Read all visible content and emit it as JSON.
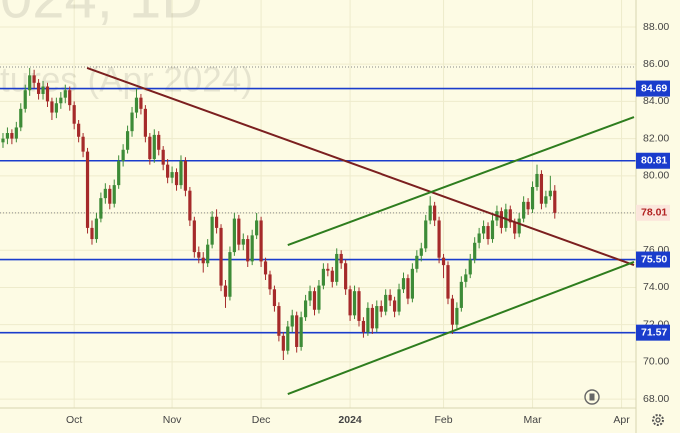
{
  "chart_data": {
    "type": "candlestick",
    "watermark": [
      "024, 1D",
      "tures (Apr 2024)"
    ],
    "open": [
      81.8,
      82.0,
      82.3,
      82.0,
      82.6,
      83.6,
      84.6,
      85.4,
      85.0,
      84.4,
      84.8,
      84.0,
      83.4,
      83.9,
      84.2,
      84.6,
      83.8,
      82.8,
      82.1,
      81.3,
      77.2,
      76.6,
      77.7,
      78.8,
      79.3,
      78.5,
      79.5,
      80.8,
      81.4,
      82.4,
      83.4,
      84.2,
      83.6,
      82.1,
      80.9,
      82.2,
      81.4,
      80.6,
      79.9,
      80.2,
      79.5,
      80.8,
      79.2,
      77.6,
      75.9,
      75.6,
      75.3,
      76.3,
      77.8,
      77.2,
      74.1,
      73.5,
      75.9,
      77.7,
      76.3,
      76.6,
      75.4,
      76.8,
      77.6,
      75.4,
      74.7,
      73.9,
      73.0,
      71.4,
      70.6,
      71.9,
      72.5,
      70.8,
      72.4,
      73.3,
      73.8,
      72.8,
      74.1,
      75.0,
      74.9,
      74.3,
      75.8,
      75.3,
      73.9,
      72.5,
      73.8,
      72.2,
      71.6,
      72.9,
      71.8,
      73.0,
      72.7,
      73.6,
      73.3,
      72.7,
      73.9,
      74.5,
      73.4,
      75.0,
      75.7,
      76.1,
      77.6,
      78.4,
      77.6,
      75.6,
      75.2,
      73.4,
      72.0,
      72.9,
      74.3,
      74.7,
      75.5,
      76.4,
      76.9,
      77.3,
      76.6,
      77.6,
      78.1,
      77.2,
      78.2,
      77.5,
      76.9,
      77.7,
      78.6,
      78.2,
      79.4,
      80.1,
      78.5,
      78.9,
      79.2
    ],
    "high": [
      82.3,
      82.6,
      82.5,
      82.9,
      83.9,
      84.9,
      85.8,
      85.7,
      85.2,
      85.1,
      85.0,
      84.2,
      84.2,
      84.5,
      84.9,
      84.8,
      84.0,
      83.0,
      82.3,
      81.5,
      77.6,
      78.0,
      79.1,
      79.6,
      79.5,
      79.8,
      81.1,
      81.7,
      82.7,
      83.7,
      84.7,
      84.4,
      83.8,
      82.3,
      82.5,
      82.4,
      81.6,
      80.9,
      80.5,
      80.4,
      81.1,
      81.0,
      79.4,
      77.8,
      76.2,
      75.9,
      76.6,
      78.1,
      78.2,
      77.4,
      74.4,
      76.2,
      78.0,
      77.9,
      76.9,
      76.8,
      77.1,
      78.0,
      77.8,
      75.6,
      74.9,
      74.1,
      73.2,
      71.6,
      72.2,
      72.8,
      72.7,
      72.7,
      73.6,
      74.1,
      74.0,
      74.4,
      75.3,
      75.3,
      75.1,
      76.1,
      76.0,
      75.5,
      74.1,
      74.1,
      74.0,
      72.4,
      73.2,
      73.1,
      73.3,
      73.3,
      73.9,
      73.9,
      73.5,
      74.2,
      74.8,
      74.7,
      75.3,
      76.0,
      76.4,
      77.9,
      78.9,
      78.6,
      77.8,
      75.8,
      75.4,
      73.6,
      73.2,
      74.6,
      75.0,
      75.8,
      76.7,
      77.2,
      77.6,
      77.5,
      77.9,
      78.4,
      78.3,
      78.5,
      78.4,
      77.7,
      78.0,
      78.9,
      78.8,
      79.7,
      80.6,
      80.3,
      79.2,
      80.0,
      79.5
    ],
    "low": [
      81.5,
      81.7,
      81.7,
      81.8,
      82.4,
      83.4,
      84.3,
      84.7,
      84.1,
      84.1,
      83.7,
      83.0,
      83.1,
      83.6,
      83.9,
      83.5,
      82.5,
      81.8,
      81.0,
      76.9,
      76.3,
      76.4,
      77.5,
      78.5,
      78.2,
      78.3,
      79.3,
      80.5,
      81.2,
      82.1,
      83.1,
      83.3,
      81.8,
      80.6,
      80.7,
      81.1,
      80.3,
      79.6,
      79.6,
      79.2,
      79.3,
      78.9,
      77.3,
      75.6,
      75.3,
      74.8,
      75.1,
      76.1,
      76.9,
      73.8,
      72.9,
      73.3,
      75.7,
      76.0,
      76.0,
      75.1,
      75.2,
      76.6,
      75.1,
      74.4,
      73.6,
      72.7,
      71.1,
      70.1,
      70.4,
      71.6,
      70.5,
      70.6,
      72.2,
      73.0,
      72.5,
      72.6,
      73.9,
      74.6,
      74.0,
      74.1,
      75.0,
      73.6,
      72.2,
      72.3,
      71.9,
      71.3,
      71.4,
      71.5,
      71.6,
      72.4,
      72.5,
      73.0,
      72.4,
      72.5,
      73.7,
      73.1,
      73.2,
      74.8,
      75.4,
      75.9,
      77.4,
      77.3,
      75.3,
      74.5,
      73.1,
      71.5,
      71.8,
      72.7,
      74.0,
      74.5,
      75.3,
      76.1,
      76.6,
      76.3,
      76.4,
      77.3,
      76.9,
      77.0,
      77.2,
      76.6,
      76.7,
      77.5,
      77.9,
      78.0,
      79.2,
      78.2,
      78.3,
      78.7,
      77.7
    ],
    "close": [
      82.0,
      82.3,
      82.0,
      82.6,
      83.6,
      84.6,
      85.4,
      85.0,
      84.4,
      84.8,
      84.0,
      83.4,
      83.9,
      84.2,
      84.6,
      83.8,
      82.8,
      82.1,
      81.3,
      77.2,
      76.6,
      77.7,
      78.8,
      79.3,
      78.5,
      79.5,
      80.8,
      81.4,
      82.4,
      83.4,
      84.2,
      83.6,
      82.1,
      80.9,
      82.2,
      81.4,
      80.6,
      79.9,
      80.2,
      79.5,
      80.8,
      79.2,
      77.6,
      75.9,
      75.6,
      75.3,
      76.3,
      77.8,
      77.2,
      74.1,
      73.5,
      75.9,
      77.7,
      76.3,
      76.6,
      75.4,
      76.8,
      77.6,
      75.4,
      74.7,
      73.9,
      73.0,
      71.4,
      70.6,
      71.9,
      72.5,
      70.8,
      72.4,
      73.3,
      73.8,
      72.8,
      74.1,
      75.0,
      74.9,
      74.3,
      75.8,
      75.3,
      73.9,
      72.5,
      73.8,
      72.2,
      71.6,
      72.9,
      71.8,
      73.0,
      72.7,
      73.6,
      73.3,
      72.7,
      73.9,
      74.5,
      73.4,
      75.0,
      75.7,
      76.1,
      77.6,
      78.4,
      77.6,
      75.6,
      75.2,
      73.4,
      72.0,
      72.9,
      74.3,
      74.7,
      75.5,
      76.4,
      76.9,
      77.3,
      76.6,
      77.6,
      78.1,
      77.2,
      78.2,
      77.5,
      76.9,
      77.7,
      78.6,
      78.2,
      79.4,
      80.1,
      78.5,
      78.9,
      79.2,
      78.01
    ],
    "up_color": "#3d8b37",
    "down_color": "#a52a2a",
    "xlim": [
      -0.67,
      142.25
    ],
    "xticks": [
      {
        "value": 16,
        "label": "Oct"
      },
      {
        "value": 38,
        "label": "Nov"
      },
      {
        "value": 58,
        "label": "Dec"
      },
      {
        "value": 78,
        "label": "2024"
      },
      {
        "value": 99,
        "label": "Feb"
      },
      {
        "value": 119,
        "label": "Mar"
      },
      {
        "value": 139,
        "label": "Apr"
      }
    ],
    "ylim": [
      67.52,
      89.45
    ],
    "yticks": [
      {
        "value": 68,
        "label": "68.00"
      },
      {
        "value": 70,
        "label": "70.00"
      },
      {
        "value": 72,
        "label": "72.00"
      },
      {
        "value": 74,
        "label": "74.00"
      },
      {
        "value": 76,
        "label": "76.00"
      },
      {
        "value": 78,
        "label": "78.00"
      },
      {
        "value": 80,
        "label": "80.00"
      },
      {
        "value": 82,
        "label": "82.00"
      },
      {
        "value": 84,
        "label": "84.00"
      },
      {
        "value": 86,
        "label": "86.00"
      },
      {
        "value": 88,
        "label": "88.00"
      }
    ],
    "grid": true,
    "price_lines": [
      84.69,
      80.81,
      {
        "value": 75.5,
        "label": "75.50"
      },
      71.57
    ],
    "price_line_color": "#1a3ccc",
    "reference_lines": [
      85.85
    ],
    "last_price": 78.01,
    "last_price_color": "#b22222",
    "trend_lines": [
      {
        "color": "#7b1f1f",
        "x": [
          18.9,
          141.8
        ],
        "y": [
          85.8,
          75.2
        ]
      },
      {
        "color": "#2e7d1e",
        "x": [
          64.0,
          141.8
        ],
        "y": [
          76.28,
          83.16
        ]
      },
      {
        "color": "#2e7d1e",
        "x": [
          64.0,
          141.8
        ],
        "y": [
          68.27,
          75.37
        ]
      }
    ]
  }
}
